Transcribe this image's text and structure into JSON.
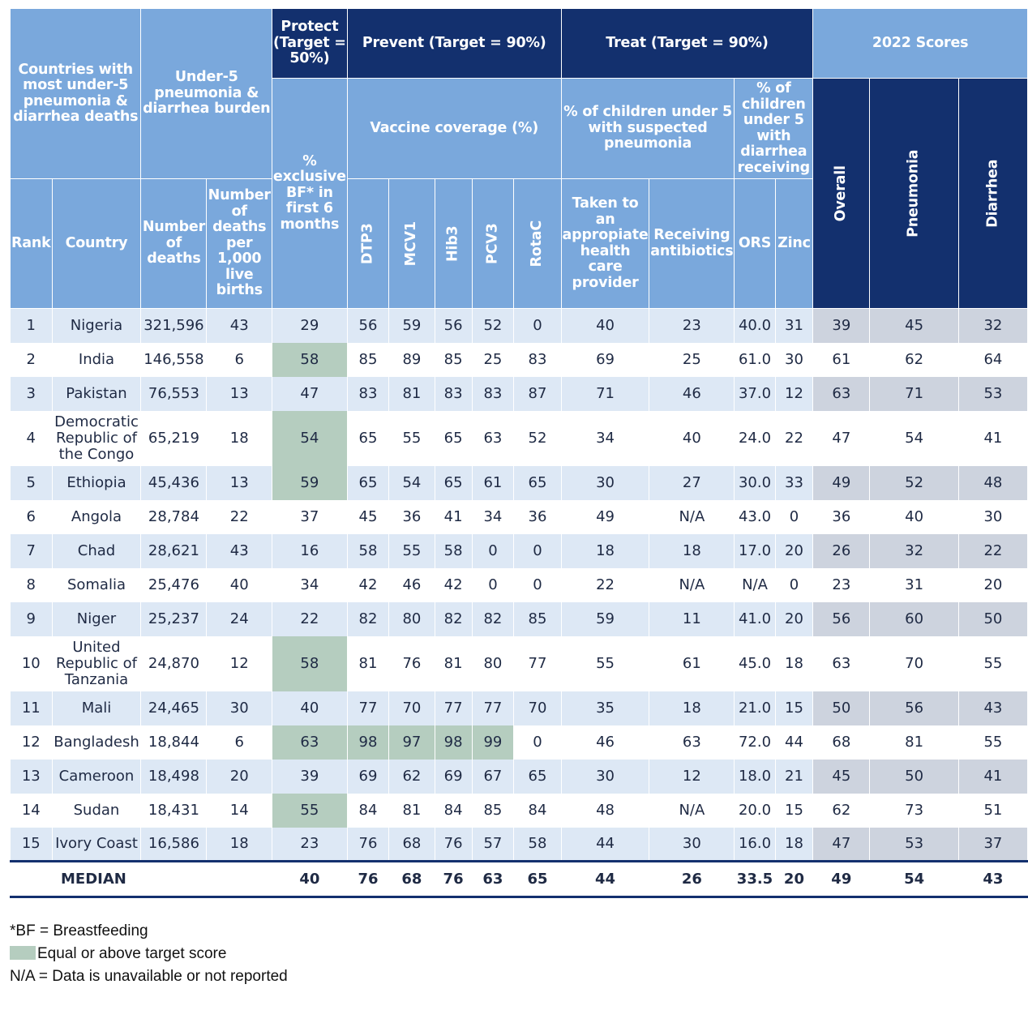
{
  "headers": {
    "group_countries": "Countries with most under-5 pneumonia & diarrhea deaths",
    "group_burden": "Under-5 pneumonia & diarrhea burden",
    "protect": "Protect (Target = 50%)",
    "prevent": "Prevent (Target = 90%)",
    "treat": "Treat (Target = 90%)",
    "scores": "2022 Scores",
    "bf": "% exclusive BF* in first 6 months",
    "vaccine": "Vaccine coverage (%)",
    "pneu_sub": "% of children under 5 with suspected pneumonia",
    "diar_sub": "% of children under 5 with diarrhea receiving",
    "overall": "Overall",
    "pneumonia": "Pneumonia",
    "diarrhea": "Diarrhea",
    "rank": "Rank",
    "country": "Country",
    "num_deaths": "Number of deaths",
    "deaths_per": "Number of deaths per 1,000 live births",
    "dtp3": "DTP3",
    "mcv1": "MCV1",
    "hib3": "Hib3",
    "pcv3": "PCV3",
    "rotac": "RotaC",
    "taken": "Taken to an appropiate health care provider",
    "antibiotics": "Receiving antibiotics",
    "ors": "ORS",
    "zinc": "Zinc"
  },
  "rows": [
    {
      "rank": "1",
      "country": "Nigeria",
      "deaths": "321,596",
      "per1000": "43",
      "bf": "29",
      "dtp3": "56",
      "mcv1": "59",
      "hib3": "56",
      "pcv3": "52",
      "rotac": "0",
      "taken": "40",
      "antibiotics": "23",
      "ors": "40.0",
      "zinc": "31",
      "overall": "39",
      "pneumonia": "45",
      "diarrhea": "32"
    },
    {
      "rank": "2",
      "country": "India",
      "deaths": "146,558",
      "per1000": "6",
      "bf": "58",
      "dtp3": "85",
      "mcv1": "89",
      "hib3": "85",
      "pcv3": "25",
      "rotac": "83",
      "taken": "69",
      "antibiotics": "25",
      "ors": "61.0",
      "zinc": "30",
      "overall": "61",
      "pneumonia": "62",
      "diarrhea": "64"
    },
    {
      "rank": "3",
      "country": "Pakistan",
      "deaths": "76,553",
      "per1000": "13",
      "bf": "47",
      "dtp3": "83",
      "mcv1": "81",
      "hib3": "83",
      "pcv3": "83",
      "rotac": "87",
      "taken": "71",
      "antibiotics": "46",
      "ors": "37.0",
      "zinc": "12",
      "overall": "63",
      "pneumonia": "71",
      "diarrhea": "53"
    },
    {
      "rank": "4",
      "country": "Democratic Republic of the Congo",
      "deaths": "65,219",
      "per1000": "18",
      "bf": "54",
      "dtp3": "65",
      "mcv1": "55",
      "hib3": "65",
      "pcv3": "63",
      "rotac": "52",
      "taken": "34",
      "antibiotics": "40",
      "ors": "24.0",
      "zinc": "22",
      "overall": "47",
      "pneumonia": "54",
      "diarrhea": "41"
    },
    {
      "rank": "5",
      "country": "Ethiopia",
      "deaths": "45,436",
      "per1000": "13",
      "bf": "59",
      "dtp3": "65",
      "mcv1": "54",
      "hib3": "65",
      "pcv3": "61",
      "rotac": "65",
      "taken": "30",
      "antibiotics": "27",
      "ors": "30.0",
      "zinc": "33",
      "overall": "49",
      "pneumonia": "52",
      "diarrhea": "48"
    },
    {
      "rank": "6",
      "country": "Angola",
      "deaths": "28,784",
      "per1000": "22",
      "bf": "37",
      "dtp3": "45",
      "mcv1": "36",
      "hib3": "41",
      "pcv3": "34",
      "rotac": "36",
      "taken": "49",
      "antibiotics": "N/A",
      "ors": "43.0",
      "zinc": "0",
      "overall": "36",
      "pneumonia": "40",
      "diarrhea": "30"
    },
    {
      "rank": "7",
      "country": "Chad",
      "deaths": "28,621",
      "per1000": "43",
      "bf": "16",
      "dtp3": "58",
      "mcv1": "55",
      "hib3": "58",
      "pcv3": "0",
      "rotac": "0",
      "taken": "18",
      "antibiotics": "18",
      "ors": "17.0",
      "zinc": "20",
      "overall": "26",
      "pneumonia": "32",
      "diarrhea": "22"
    },
    {
      "rank": "8",
      "country": "Somalia",
      "deaths": "25,476",
      "per1000": "40",
      "bf": "34",
      "dtp3": "42",
      "mcv1": "46",
      "hib3": "42",
      "pcv3": "0",
      "rotac": "0",
      "taken": "22",
      "antibiotics": "N/A",
      "ors": "N/A",
      "zinc": "0",
      "overall": "23",
      "pneumonia": "31",
      "diarrhea": "20"
    },
    {
      "rank": "9",
      "country": "Niger",
      "deaths": "25,237",
      "per1000": "24",
      "bf": "22",
      "dtp3": "82",
      "mcv1": "80",
      "hib3": "82",
      "pcv3": "82",
      "rotac": "85",
      "taken": "59",
      "antibiotics": "11",
      "ors": "41.0",
      "zinc": "20",
      "overall": "56",
      "pneumonia": "60",
      "diarrhea": "50"
    },
    {
      "rank": "10",
      "country": "United Republic of Tanzania",
      "deaths": "24,870",
      "per1000": "12",
      "bf": "58",
      "dtp3": "81",
      "mcv1": "76",
      "hib3": "81",
      "pcv3": "80",
      "rotac": "77",
      "taken": "55",
      "antibiotics": "61",
      "ors": "45.0",
      "zinc": "18",
      "overall": "63",
      "pneumonia": "70",
      "diarrhea": "55"
    },
    {
      "rank": "11",
      "country": "Mali",
      "deaths": "24,465",
      "per1000": "30",
      "bf": "40",
      "dtp3": "77",
      "mcv1": "70",
      "hib3": "77",
      "pcv3": "77",
      "rotac": "70",
      "taken": "35",
      "antibiotics": "18",
      "ors": "21.0",
      "zinc": "15",
      "overall": "50",
      "pneumonia": "56",
      "diarrhea": "43"
    },
    {
      "rank": "12",
      "country": "Bangladesh",
      "deaths": "18,844",
      "per1000": "6",
      "bf": "63",
      "dtp3": "98",
      "mcv1": "97",
      "hib3": "98",
      "pcv3": "99",
      "rotac": "0",
      "taken": "46",
      "antibiotics": "63",
      "ors": "72.0",
      "zinc": "44",
      "overall": "68",
      "pneumonia": "81",
      "diarrhea": "55"
    },
    {
      "rank": "13",
      "country": "Cameroon",
      "deaths": "18,498",
      "per1000": "20",
      "bf": "39",
      "dtp3": "69",
      "mcv1": "62",
      "hib3": "69",
      "pcv3": "67",
      "rotac": "65",
      "taken": "30",
      "antibiotics": "12",
      "ors": "18.0",
      "zinc": "21",
      "overall": "45",
      "pneumonia": "50",
      "diarrhea": "41"
    },
    {
      "rank": "14",
      "country": "Sudan",
      "deaths": "18,431",
      "per1000": "14",
      "bf": "55",
      "dtp3": "84",
      "mcv1": "81",
      "hib3": "84",
      "pcv3": "85",
      "rotac": "84",
      "taken": "48",
      "antibiotics": "N/A",
      "ors": "20.0",
      "zinc": "15",
      "overall": "62",
      "pneumonia": "73",
      "diarrhea": "51"
    },
    {
      "rank": "15",
      "country": "Ivory Coast",
      "deaths": "16,586",
      "per1000": "18",
      "bf": "23",
      "dtp3": "76",
      "mcv1": "68",
      "hib3": "76",
      "pcv3": "57",
      "rotac": "58",
      "taken": "44",
      "antibiotics": "30",
      "ors": "16.0",
      "zinc": "18",
      "overall": "47",
      "pneumonia": "53",
      "diarrhea": "37"
    }
  ],
  "median": {
    "label": "MEDIAN",
    "bf": "40",
    "dtp3": "76",
    "mcv1": "68",
    "hib3": "76",
    "pcv3": "63",
    "rotac": "65",
    "taken": "44",
    "antibiotics": "26",
    "ors": "33.5",
    "zinc": "20",
    "overall": "49",
    "pneumonia": "54",
    "diarrhea": "43"
  },
  "highlighted": [
    {
      "rank": "2",
      "columns": [
        "bf"
      ]
    },
    {
      "rank": "4",
      "columns": [
        "bf"
      ]
    },
    {
      "rank": "5",
      "columns": [
        "bf"
      ]
    },
    {
      "rank": "10",
      "columns": [
        "bf"
      ]
    },
    {
      "rank": "12",
      "columns": [
        "bf",
        "dtp3",
        "mcv1",
        "hib3",
        "pcv3"
      ]
    },
    {
      "rank": "14",
      "columns": [
        "bf"
      ]
    }
  ],
  "legend": {
    "bf_note": "*BF = Breastfeeding",
    "target_note": "Equal or above target score",
    "na_note": "N/A = Data is unavailable or not reported"
  },
  "colors": {
    "header_light": "#7aa8dc",
    "header_dark": "#13306e",
    "row_band": "#dde8f5",
    "score_band": "#cdd3de",
    "target_highlight": "#b5cdbf"
  }
}
